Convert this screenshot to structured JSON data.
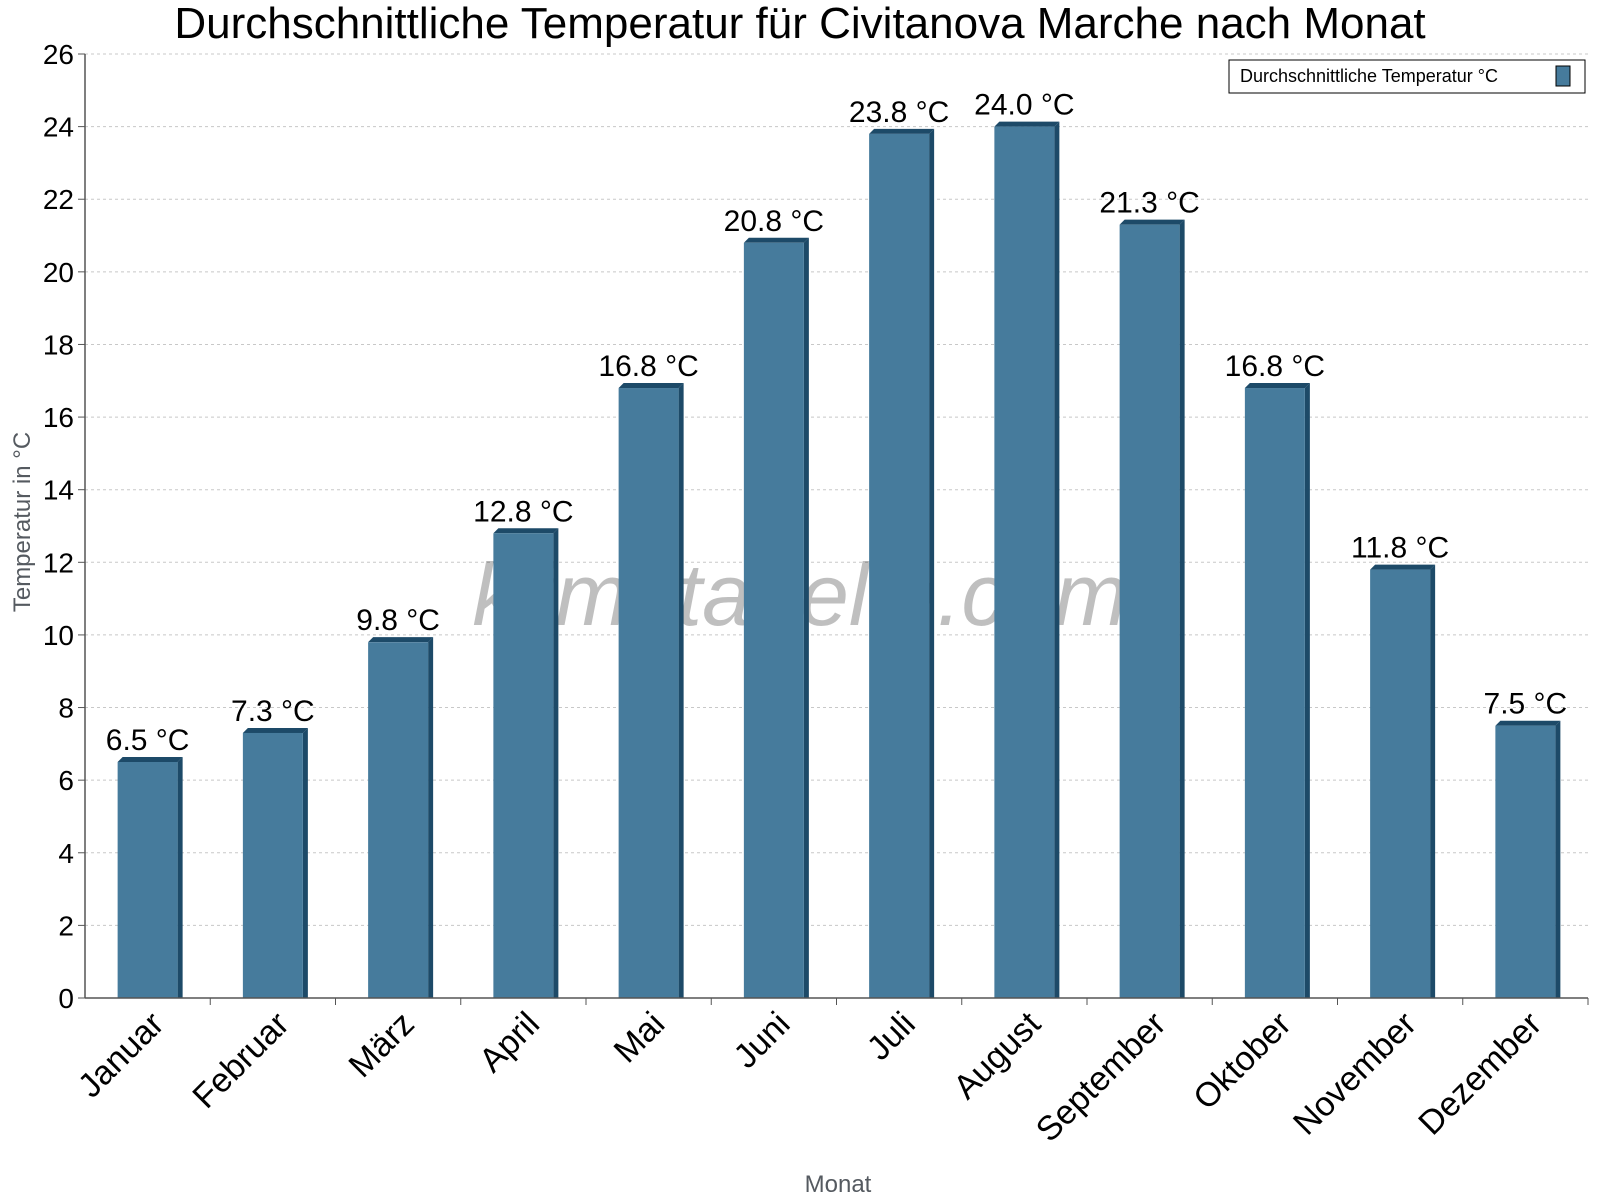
{
  "chart_data": {
    "type": "bar",
    "title": "Durchschnittliche Temperatur für Civitanova Marche nach Monat",
    "xlabel": "Monat",
    "ylabel": "Temperatur in °C",
    "categories": [
      "Januar",
      "Februar",
      "März",
      "April",
      "Mai",
      "Juni",
      "Juli",
      "August",
      "September",
      "Oktober",
      "November",
      "Dezember"
    ],
    "series": [
      {
        "name": "Durchschnittliche Temperatur °C",
        "values": [
          6.5,
          7.3,
          9.8,
          12.8,
          16.8,
          20.8,
          23.8,
          24.0,
          21.3,
          16.8,
          11.8,
          7.5
        ],
        "data_labels": [
          "6.5 °C",
          "7.3 °C",
          "9.8 °C",
          "12.8 °C",
          "16.8 °C",
          "20.8 °C",
          "23.8 °C",
          "24.0 °C",
          "21.3 °C",
          "16.8 °C",
          "11.8 °C",
          "7.5 °C"
        ]
      }
    ],
    "ylim": [
      0,
      26
    ],
    "yticks": [
      0,
      2,
      4,
      6,
      8,
      10,
      12,
      14,
      16,
      18,
      20,
      22,
      24,
      26
    ],
    "grid": true,
    "legend_position": "top-right",
    "watermark": "klimatabelle.com",
    "colors": {
      "bar": "#467b9c",
      "bar_side": "#1d4a68",
      "bar_top": "#1d4a68",
      "grid": "#c8c8c8",
      "axis": "#555555"
    }
  }
}
